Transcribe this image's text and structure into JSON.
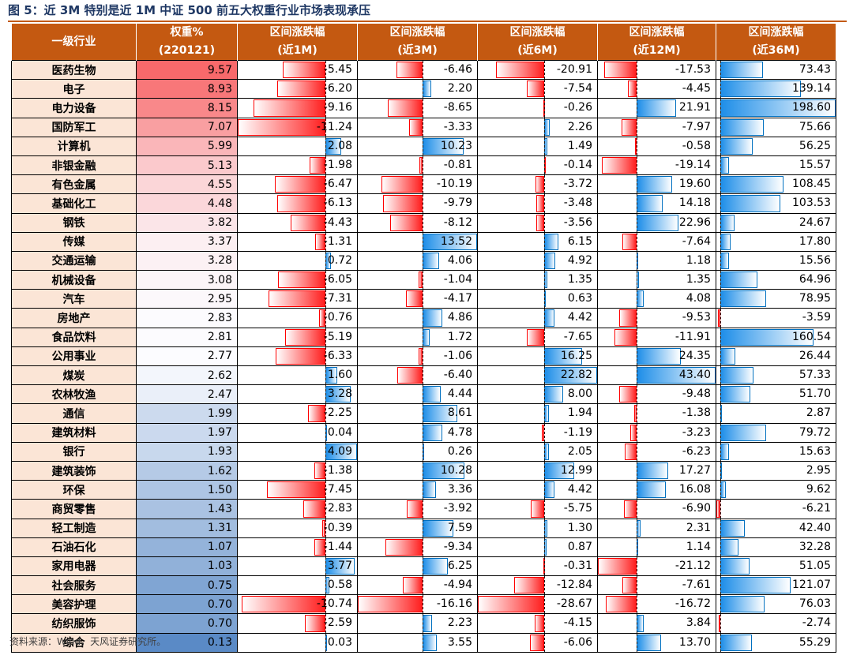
{
  "title": "图 5：近 3M 特别是近 1M 中证 500 前五大权重行业市场表现承压",
  "source": "资料来源：Wind，天风证券研究所。",
  "chart_data": {
    "type": "table",
    "columns": [
      {
        "key": "industry",
        "line1": "一级行业",
        "line2": ""
      },
      {
        "key": "weight",
        "line1": "权重%",
        "line2": "(220121)"
      },
      {
        "key": "r1m",
        "line1": "区间涨跌幅",
        "line2": "(近1M)"
      },
      {
        "key": "r3m",
        "line1": "区间涨跌幅",
        "line2": "(近3M)"
      },
      {
        "key": "r6m",
        "line1": "区间涨跌幅",
        "line2": "(近6M)"
      },
      {
        "key": "r12m",
        "line1": "区间涨跌幅",
        "line2": "(近12M)"
      },
      {
        "key": "r36m",
        "line1": "区间涨跌幅",
        "line2": "(近36M)"
      }
    ],
    "rows": [
      [
        "医药生物",
        "9.57",
        "-5.45",
        "-6.46",
        "-20.91",
        "-17.53",
        "73.43"
      ],
      [
        "电子",
        "8.93",
        "-6.20",
        "2.20",
        "-7.54",
        "-4.45",
        "139.14"
      ],
      [
        "电力设备",
        "8.15",
        "-9.16",
        "-8.65",
        "-0.26",
        "21.91",
        "198.60"
      ],
      [
        "国防军工",
        "7.07",
        "-11.24",
        "-3.33",
        "2.26",
        "-7.97",
        "75.66"
      ],
      [
        "计算机",
        "5.99",
        "2.08",
        "10.23",
        "1.49",
        "-0.58",
        "56.25"
      ],
      [
        "非银金融",
        "5.13",
        "-1.98",
        "-0.81",
        "-0.14",
        "-19.14",
        "15.57"
      ],
      [
        "有色金属",
        "4.55",
        "-6.47",
        "-10.19",
        "-3.72",
        "19.60",
        "108.45"
      ],
      [
        "基础化工",
        "4.48",
        "-6.13",
        "-9.79",
        "-3.48",
        "14.18",
        "103.53"
      ],
      [
        "钢铁",
        "3.82",
        "-4.43",
        "-8.12",
        "-3.56",
        "22.96",
        "24.67"
      ],
      [
        "传媒",
        "3.37",
        "-1.31",
        "13.52",
        "6.15",
        "-7.64",
        "17.80"
      ],
      [
        "交通运输",
        "3.28",
        "0.72",
        "4.06",
        "4.92",
        "1.18",
        "15.56"
      ],
      [
        "机械设备",
        "3.08",
        "-6.05",
        "-1.04",
        "1.35",
        "1.35",
        "64.96"
      ],
      [
        "汽车",
        "2.95",
        "-7.31",
        "-4.17",
        "0.63",
        "4.08",
        "78.95"
      ],
      [
        "房地产",
        "2.83",
        "-0.76",
        "4.86",
        "4.42",
        "-9.53",
        "-3.59"
      ],
      [
        "食品饮料",
        "2.81",
        "-5.19",
        "1.72",
        "-7.65",
        "-11.91",
        "160.54"
      ],
      [
        "公用事业",
        "2.77",
        "-6.33",
        "-1.06",
        "16.25",
        "24.35",
        "26.44"
      ],
      [
        "煤炭",
        "2.62",
        "1.60",
        "-6.40",
        "22.82",
        "43.40",
        "57.33"
      ],
      [
        "农林牧渔",
        "2.47",
        "3.28",
        "4.44",
        "8.00",
        "-9.48",
        "51.70"
      ],
      [
        "通信",
        "1.99",
        "-2.25",
        "8.61",
        "1.94",
        "-1.38",
        "2.87"
      ],
      [
        "建筑材料",
        "1.97",
        "0.04",
        "4.78",
        "-1.19",
        "-3.23",
        "79.72"
      ],
      [
        "银行",
        "1.93",
        "4.09",
        "0.26",
        "2.05",
        "-6.23",
        "15.63"
      ],
      [
        "建筑装饰",
        "1.62",
        "-1.38",
        "10.28",
        "12.99",
        "17.27",
        "2.95"
      ],
      [
        "环保",
        "1.50",
        "-7.45",
        "3.36",
        "4.42",
        "16.08",
        "9.62"
      ],
      [
        "商贸零售",
        "1.43",
        "-2.83",
        "-3.92",
        "-5.75",
        "-6.90",
        "-6.21"
      ],
      [
        "轻工制造",
        "1.31",
        "-0.39",
        "7.59",
        "1.30",
        "2.31",
        "42.40"
      ],
      [
        "石油石化",
        "1.07",
        "-1.44",
        "-9.34",
        "0.87",
        "1.14",
        "32.28"
      ],
      [
        "家用电器",
        "1.03",
        "3.77",
        "6.25",
        "-0.31",
        "-21.12",
        "51.05"
      ],
      [
        "社会服务",
        "0.75",
        "0.58",
        "-4.94",
        "-12.84",
        "-7.61",
        "121.07"
      ],
      [
        "美容护理",
        "0.70",
        "-10.74",
        "-16.16",
        "-28.67",
        "-16.72",
        "76.03"
      ],
      [
        "纺织服饰",
        "0.70",
        "-2.59",
        "2.23",
        "-4.15",
        "3.84",
        "-2.74"
      ],
      [
        "综合",
        "0.13",
        "0.03",
        "3.55",
        "-6.06",
        "13.70",
        "55.29"
      ]
    ],
    "colors": {
      "header_bg": "#c45911",
      "industry_bg": "#fbe5d6",
      "weight_high": "#f8696b",
      "weight_mid": "#fcfcff",
      "weight_low": "#5a8ac6",
      "negative_bar": "#ff0000",
      "positive_bar": "#0070c0"
    }
  }
}
